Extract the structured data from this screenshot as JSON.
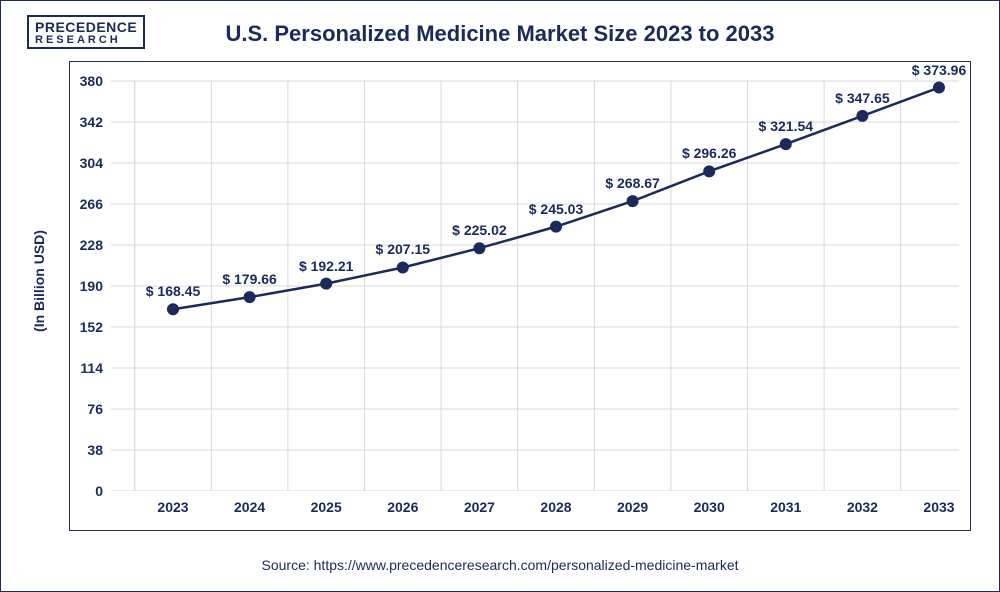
{
  "logo": {
    "line1": "PRECEDENCE",
    "line2": "RESEARCH"
  },
  "chart": {
    "type": "line",
    "title": "U.S. Personalized Medicine Market Size 2023 to 2033",
    "ylabel": "(In Billion USD)",
    "source": "Source: https://www.precedenceresearch.com/personalized-medicine-market",
    "line_color": "#1a2a5a",
    "marker_color": "#1a2a5a",
    "marker_radius": 6,
    "line_width": 2.5,
    "grid_color": "#d8d8d8",
    "background_color": "#ffffff",
    "title_fontsize": 22,
    "label_fontsize": 14,
    "tick_fontsize": 14,
    "data_label_fontsize": 14,
    "ylim": [
      0,
      380
    ],
    "yticks": [
      0,
      38,
      76,
      114,
      152,
      190,
      228,
      266,
      304,
      342,
      380
    ],
    "categories": [
      "2023",
      "2024",
      "2025",
      "2026",
      "2027",
      "2028",
      "2029",
      "2030",
      "2031",
      "2032",
      "2033"
    ],
    "values": [
      168.45,
      179.66,
      192.21,
      207.15,
      225.02,
      245.03,
      268.67,
      296.26,
      321.54,
      347.65,
      373.96
    ],
    "data_labels": [
      "$ 168.45",
      "$ 179.66",
      "$ 192.21",
      "$ 207.15",
      "$ 225.02",
      "$ 245.03",
      "$ 268.67",
      "$ 296.26",
      "$ 321.54",
      "$ 347.65",
      "$ 373.96"
    ]
  }
}
